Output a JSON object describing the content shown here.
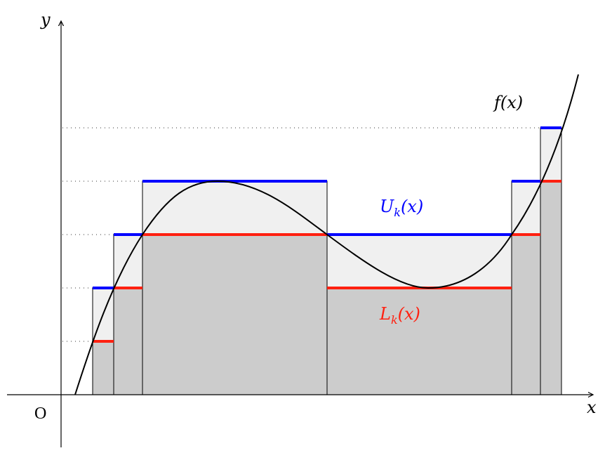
{
  "labels": {
    "y_axis": "y",
    "x_axis": "x",
    "origin": "O",
    "function": "f(x)",
    "upper_base": "U",
    "upper_sub": "k",
    "upper_arg": "(x)",
    "lower_base": "L",
    "lower_sub": "k",
    "lower_arg": "(x)"
  },
  "colors": {
    "upper": "#0000ff",
    "lower": "#ff2010",
    "upper_fill": "#f0f0f0",
    "lower_fill": "#cccccc",
    "curve": "#000000"
  }
}
